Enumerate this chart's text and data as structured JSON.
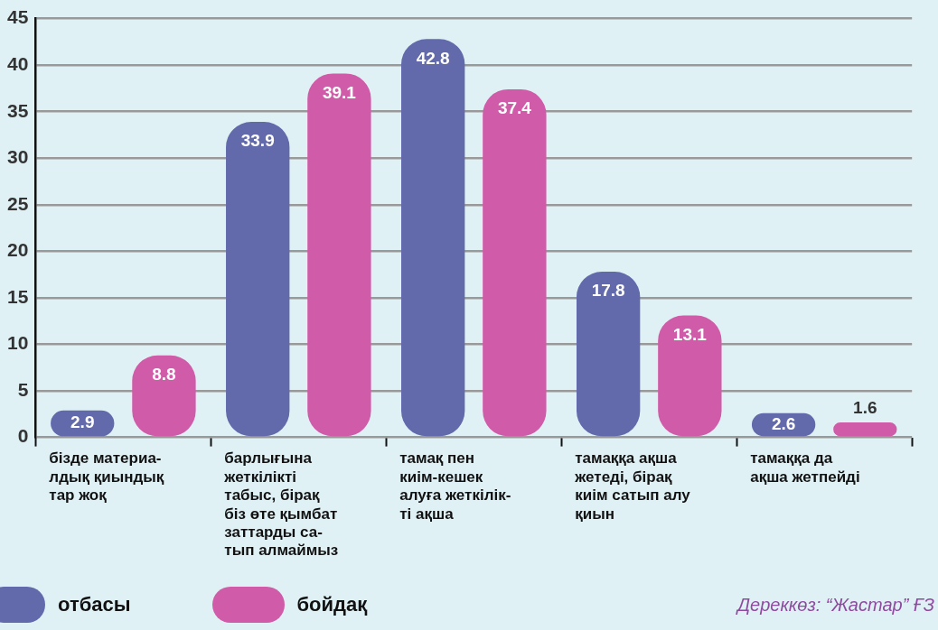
{
  "chart_data": {
    "type": "bar",
    "categories": [
      "бізде материа-\nлдық қиындық\nтар жоқ",
      "барлығына\nжеткілікті\nтабыс, бірақ\nбіз өте қымбат\nзаттарды са-\nтып алмаймыз",
      "тамақ пен\nкиім-кешек\nалуға жеткілік-\nті ақша",
      "тамаққа ақша\nжетеді, бірақ\nкиім сатып алу\nқиын",
      "тамаққа да\nақша жетпейді"
    ],
    "series": [
      {
        "name": "отбасы",
        "color": "#626aab",
        "values": [
          2.9,
          33.9,
          42.8,
          17.8,
          2.6
        ]
      },
      {
        "name": "бойдақ",
        "color": "#d05ba8",
        "values": [
          8.8,
          39.1,
          37.4,
          13.1,
          1.6
        ]
      }
    ],
    "ylim": [
      0,
      45
    ],
    "yticks": [
      0,
      5,
      10,
      15,
      20,
      25,
      30,
      35,
      40,
      45
    ],
    "grid": "y",
    "legend": "bottom left",
    "data_labels": true,
    "annotations": [
      "Дереккөз: “Жастар” ҒЗ"
    ]
  }
}
